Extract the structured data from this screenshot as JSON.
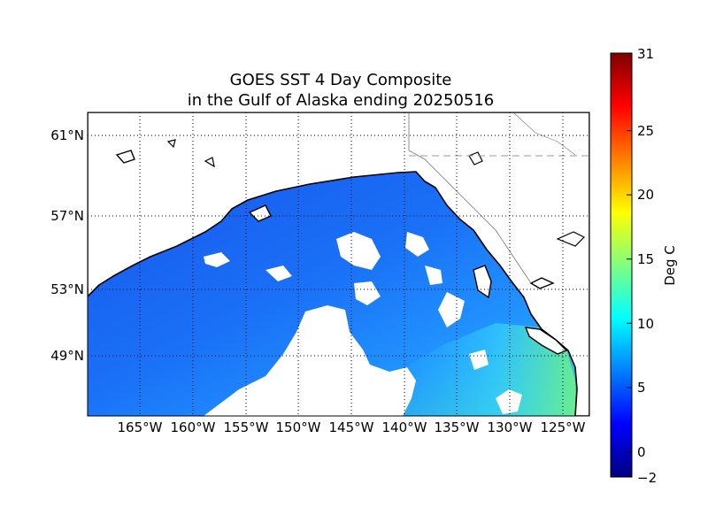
{
  "title_line1": "GOES SST 4 Day Composite",
  "title_line2": "in the Gulf of Alaska ending 20250516",
  "lat_labels": [
    "61°N",
    "57°N",
    "53°N",
    "49°N"
  ],
  "lon_labels": [
    "165°W",
    "160°W",
    "155°W",
    "150°W",
    "145°W",
    "140°W",
    "135°W",
    "130°W",
    "125°W"
  ],
  "colorbar": {
    "label": "Deg C",
    "tick_labels": [
      "31",
      "25",
      "20",
      "15",
      "10",
      "5",
      "0",
      "−2"
    ],
    "min": -2,
    "max": 31,
    "colormap": "jet"
  },
  "map": {
    "region": "Gulf of Alaska",
    "lat_values": [
      61,
      57,
      53,
      49
    ],
    "lon_values": [
      -165,
      -160,
      -155,
      -150,
      -145,
      -140,
      -135,
      -130,
      -125
    ],
    "land_color": "#ffffff",
    "coast_color": "#000000",
    "gridline_style": "dotted",
    "sst_colors": {
      "open_ocean": "#1a6ff2",
      "mid": "#1fa3ff",
      "nearshore_south": "#4de6b3"
    }
  }
}
